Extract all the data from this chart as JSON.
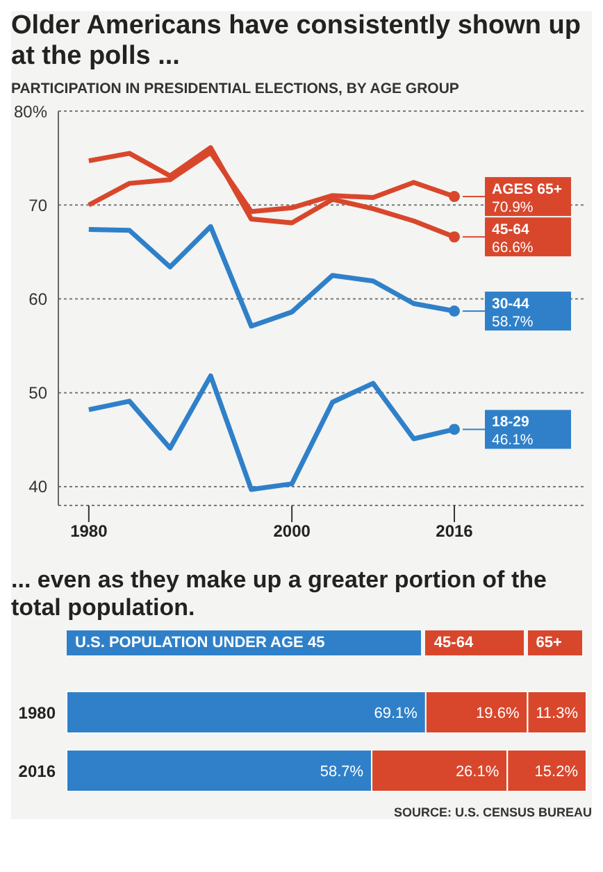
{
  "chart_data": [
    {
      "type": "line",
      "title": "Older Americans have consistently shown up at the polls ...",
      "subtitle": "PARTICIPATION IN PRESIDENTIAL ELECTIONS, BY AGE GROUP",
      "x": [
        1980,
        1984,
        1988,
        1992,
        1996,
        2000,
        2004,
        2008,
        2012,
        2016
      ],
      "xlim": [
        1977,
        2029
      ],
      "xticks": [
        1980,
        2000,
        2016
      ],
      "ylim": [
        38,
        80
      ],
      "yticks": [
        {
          "value": 80,
          "label": "80%"
        },
        70,
        60,
        50,
        40
      ],
      "grid": "y",
      "marker": "none",
      "line_style": "solid",
      "series": [
        {
          "name": "AGES 65+",
          "color": "#d8472c",
          "values": [
            70.0,
            72.3,
            72.7,
            75.6,
            69.3,
            69.7,
            71.0,
            70.8,
            72.4,
            70.9
          ],
          "value_labels": [
            null,
            null,
            null,
            null,
            null,
            null,
            null,
            null,
            null,
            "70.9%"
          ]
        },
        {
          "name": "45-64",
          "color": "#d8472c",
          "values": [
            74.7,
            75.5,
            73.1,
            76.1,
            68.5,
            68.1,
            70.6,
            69.6,
            68.3,
            66.6
          ],
          "value_labels": [
            null,
            null,
            null,
            null,
            null,
            null,
            null,
            null,
            null,
            "66.6%"
          ]
        },
        {
          "name": "30-44",
          "color": "#2f80c9",
          "values": [
            67.4,
            67.3,
            63.4,
            67.7,
            57.1,
            58.6,
            62.5,
            61.9,
            59.5,
            58.7
          ],
          "value_labels": [
            null,
            null,
            null,
            null,
            null,
            null,
            null,
            null,
            null,
            "58.7%"
          ]
        },
        {
          "name": "18-29",
          "color": "#2f80c9",
          "values": [
            48.2,
            49.1,
            44.1,
            51.8,
            39.7,
            40.3,
            49.0,
            51.0,
            45.1,
            46.1
          ],
          "value_labels": [
            null,
            null,
            null,
            null,
            null,
            null,
            null,
            null,
            null,
            "46.1%"
          ]
        }
      ]
    },
    {
      "type": "bar",
      "orientation": "horizontal",
      "stacked": true,
      "title": "... even as they make up a greater portion of the total population.",
      "categories": [
        "1980",
        "2016"
      ],
      "legend": "top",
      "tick_labels": "y",
      "series": [
        {
          "name": "U.S. POPULATION UNDER AGE 45",
          "color": "#2f80c9",
          "values": [
            69.1,
            58.7
          ],
          "value_labels": [
            "69.1%",
            "58.7%"
          ]
        },
        {
          "name": "45-64",
          "color": "#d8472c",
          "values": [
            19.6,
            26.1
          ],
          "value_labels": [
            "19.6%",
            "26.1%"
          ]
        },
        {
          "name": "65+",
          "color": "#d8472c",
          "values": [
            11.3,
            15.2
          ],
          "value_labels": [
            "11.3%",
            "15.2%"
          ]
        }
      ],
      "annotations": [
        "SOURCE: U.S. CENSUS BUREAU"
      ]
    }
  ]
}
